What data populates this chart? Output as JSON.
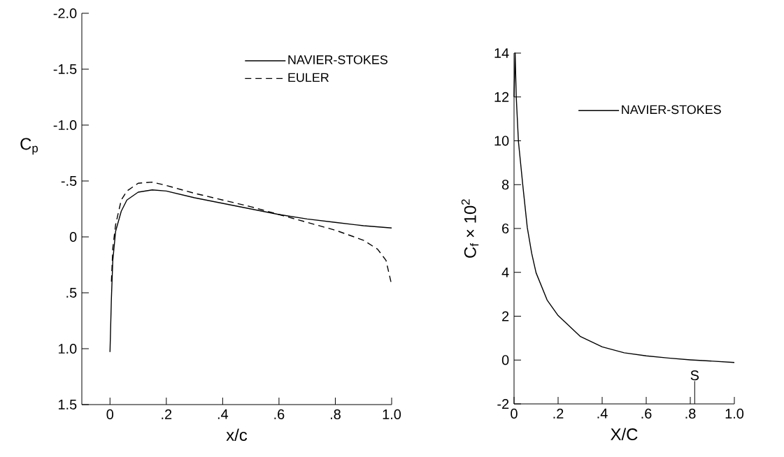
{
  "chart_data": [
    {
      "type": "line",
      "xlabel": "x/c",
      "ylabel": "C$_{p}$",
      "xlim": [
        -0.1,
        1.0
      ],
      "ylim": [
        1.5,
        -2.0
      ],
      "xticks": [
        0,
        {
          "value": 0.2,
          "label": ".2"
        },
        {
          "value": 0.4,
          "label": ".4"
        },
        {
          "value": 0.6,
          "label": ".6"
        },
        {
          "value": 0.8,
          "label": ".8"
        },
        {
          "value": 1.0,
          "label": "1.0"
        }
      ],
      "yticks": [
        {
          "value": -2.0,
          "label": "-2.0"
        },
        {
          "value": -1.5,
          "label": "-1.5"
        },
        {
          "value": -1.0,
          "label": "-1.0"
        },
        {
          "value": -0.5,
          "label": "-.5"
        },
        0,
        {
          "value": 0.5,
          "label": ".5"
        },
        {
          "value": 1.0,
          "label": "1.0"
        },
        {
          "value": 1.5,
          "label": "1.5"
        }
      ],
      "legend": "top right",
      "series": [
        {
          "name": "NAVIER-STOKES",
          "color": "#000000",
          "line_style": "solid",
          "x": [
            0,
            0.005,
            0.01,
            0.02,
            0.04,
            0.06,
            0.1,
            0.15,
            0.2,
            0.3,
            0.4,
            0.5,
            0.6,
            0.7,
            0.8,
            0.9,
            1.0
          ],
          "values": [
            1.03,
            0.55,
            0.21,
            -0.05,
            -0.23,
            -0.33,
            -0.4,
            -0.42,
            -0.41,
            -0.35,
            -0.3,
            -0.25,
            -0.2,
            -0.16,
            -0.13,
            -0.1,
            -0.08
          ]
        },
        {
          "name": "EULER",
          "color": "#000000",
          "line_style": "dashed",
          "x": [
            0.005,
            0.01,
            0.02,
            0.04,
            0.06,
            0.1,
            0.15,
            0.2,
            0.3,
            0.4,
            0.5,
            0.6,
            0.7,
            0.8,
            0.9,
            0.95,
            0.98,
            1.0
          ],
          "values": [
            0.4,
            0.1,
            -0.11,
            -0.33,
            -0.41,
            -0.48,
            -0.49,
            -0.46,
            -0.39,
            -0.33,
            -0.27,
            -0.2,
            -0.13,
            -0.06,
            0.03,
            0.11,
            0.21,
            0.43
          ]
        }
      ]
    },
    {
      "type": "line",
      "xlabel": "X/C",
      "ylabel": "C$_{f}$ × 10$^{2}$",
      "xlim": [
        0,
        1.0
      ],
      "ylim": [
        -2,
        14
      ],
      "xticks": [
        0,
        {
          "value": 0.2,
          "label": ".2"
        },
        {
          "value": 0.4,
          "label": ".4"
        },
        {
          "value": 0.6,
          "label": ".6"
        },
        {
          "value": 0.8,
          "label": ".8"
        },
        {
          "value": 1.0,
          "label": "1.0"
        }
      ],
      "yticks": [
        -2,
        0,
        2,
        4,
        6,
        8,
        10,
        12,
        14
      ],
      "legend": "right",
      "annotations": [
        "S"
      ],
      "series": [
        {
          "name": "NAVIER-STOKES",
          "color": "#000000",
          "line_style": "solid",
          "x": [
            0,
            0.005,
            0.01,
            0.02,
            0.04,
            0.06,
            0.08,
            0.1,
            0.15,
            0.2,
            0.3,
            0.4,
            0.5,
            0.6,
            0.7,
            0.8,
            0.9,
            1.0
          ],
          "values": [
            12,
            14,
            12,
            9.96,
            7.95,
            6.05,
            4.87,
            3.98,
            2.74,
            2.03,
            1.08,
            0.6,
            0.33,
            0.19,
            0.09,
            0.01,
            -0.05,
            -0.11
          ]
        }
      ]
    }
  ]
}
